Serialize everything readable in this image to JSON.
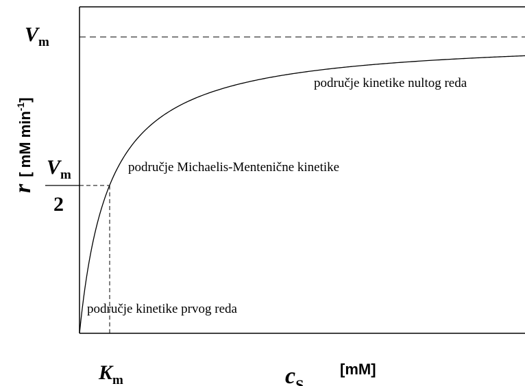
{
  "diagram": {
    "y_axis": {
      "symbol": "r",
      "unit": "[ mM min",
      "unit_exponent": "-1",
      "unit_close": "]"
    },
    "x_axis": {
      "symbol": "c",
      "symbol_subscript": "S",
      "unit": "[mM]"
    },
    "vmax": {
      "symbol": "V",
      "subscript": "m"
    },
    "half_vmax": {
      "symbol": "V",
      "subscript": "m",
      "denominator": "2"
    },
    "km": {
      "symbol": "K",
      "subscript": "m"
    },
    "regions": [
      "područje kinetike nultog reda",
      "područje  Michaelis-Mentenične kinetike",
      "područje kinetike prvog reda"
    ]
  }
}
